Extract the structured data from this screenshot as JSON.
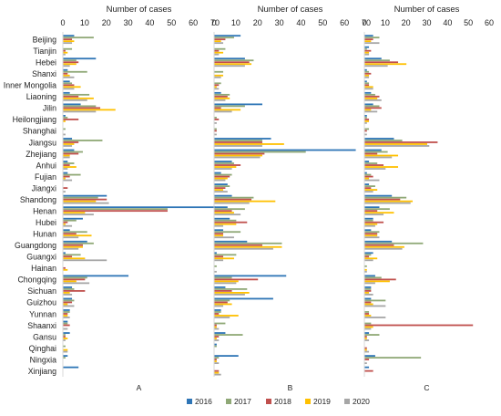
{
  "chart_data": {
    "type": "bar",
    "orientation": "horizontal",
    "xlabel": "Number of cases",
    "categories": [
      "Beijing",
      "Tianjin",
      "Hebei",
      "Shanxi",
      "Inner Mongolia",
      "Liaoning",
      "Jilin",
      "Heilongjiang",
      "Shanghai",
      "Jiangsu",
      "Zhejiang",
      "Anhui",
      "Fujian",
      "Jiangxi",
      "Shandong",
      "Henan",
      "Hubei",
      "Hunan",
      "Guangdong",
      "Guangxi",
      "Hainan",
      "Chongqing",
      "Sichuan",
      "Guizhou",
      "Yunnan",
      "Shaanxi",
      "Gansu",
      "Qinghai",
      "Ningxia",
      "Xinjiang"
    ],
    "legend": {
      "position": "bottom",
      "items": [
        {
          "name": "2016",
          "color": "#2E75B6"
        },
        {
          "name": "2017",
          "color": "#8FA876"
        },
        {
          "name": "2018",
          "color": "#C0504D"
        },
        {
          "name": "2019",
          "color": "#FFC000"
        },
        {
          "name": "2020",
          "color": "#A6A6A6"
        }
      ]
    },
    "panels": [
      {
        "label": "A",
        "xticks": [
          0,
          10,
          20,
          30,
          40,
          50,
          60,
          70
        ],
        "xlim": [
          0,
          70
        ],
        "series": [
          {
            "name": "2016",
            "values": [
              5,
              0,
              15,
              2,
              3,
              3,
              8,
              1,
              0,
              4,
              5,
              2,
              2,
              0,
              20,
              70,
              9,
              3,
              11,
              1,
              0,
              30,
              4,
              4,
              3,
              2,
              3,
              0,
              2,
              7
            ]
          },
          {
            "name": "2017",
            "values": [
              14,
              4,
              6,
              11,
              4,
              12,
              15,
              2,
              1,
              18,
              9,
              5,
              8,
              0,
              16,
              48,
              6,
              11,
              14,
              8,
              0,
              11,
              5,
              5,
              3,
              2,
              1,
              1,
              1,
              0
            ]
          },
          {
            "name": "2018",
            "values": [
              4,
              1,
              7,
              2,
              5,
              7,
              17,
              7,
              0,
              7,
              7,
              3,
              3,
              2,
              20,
              48,
              2,
              6,
              9,
              4,
              1,
              10,
              10,
              4,
              2,
              3,
              1,
              0,
              0,
              0
            ]
          },
          {
            "name": "2019",
            "values": [
              5,
              2,
              6,
              3,
              8,
              14,
              24,
              1,
              0,
              5,
              3,
              6,
              1,
              0,
              15,
              10,
              1,
              13,
              9,
              10,
              2,
              6,
              3,
              2,
              2,
              0,
              2,
              2,
              0,
              0
            ]
          },
          {
            "name": "2020",
            "values": [
              4,
              1,
              3,
              5,
              5,
              11,
              15,
              0,
              1,
              4,
              3,
              2,
              4,
              1,
              21,
              14,
              4,
              7,
              7,
              20,
              0,
              12,
              4,
              5,
              3,
              2,
              1,
              2,
              0,
              0
            ]
          }
        ]
      },
      {
        "label": "B",
        "xticks": [
          0,
          10,
          20,
          30,
          40,
          50,
          60,
          70
        ],
        "xlim": [
          0,
          70
        ],
        "series": [
          {
            "name": "2016",
            "values": [
              12,
              0,
              14,
              0,
              0,
              3,
              22,
              0,
              0,
              26,
              65,
              8,
              3,
              6,
              8,
              6,
              7,
              4,
              15,
              1,
              0,
              33,
              5,
              27,
              3,
              0,
              5,
              1,
              11,
              0
            ]
          },
          {
            "name": "2017",
            "values": [
              9,
              5,
              18,
              4,
              3,
              7,
              14,
              1,
              1,
              22,
              42,
              9,
              8,
              7,
              18,
              14,
              10,
              12,
              31,
              10,
              1,
              8,
              15,
              7,
              3,
              5,
              13,
              1,
              2,
              0
            ]
          },
          {
            "name": "2018",
            "values": [
              5,
              2,
              16,
              0,
              2,
              6,
              3,
              2,
              1,
              22,
              23,
              12,
              7,
              5,
              17,
              8,
              15,
              4,
              22,
              4,
              0,
              20,
              8,
              6,
              2,
              1,
              2,
              0,
              1,
              2
            ]
          },
          {
            "name": "2019",
            "values": [
              3,
              4,
              17,
              4,
              1,
              7,
              12,
              0,
              0,
              32,
              22,
              10,
              6,
              4,
              28,
              9,
              10,
              4,
              31,
              9,
              0,
              11,
              16,
              8,
              11,
              1,
              1,
              0,
              1,
              2
            ]
          },
          {
            "name": "2020",
            "values": [
              4,
              2,
              14,
              3,
              2,
              5,
              8,
              1,
              1,
              22,
              21,
              8,
              5,
              6,
              16,
              12,
              4,
              9,
              27,
              4,
              1,
              10,
              14,
              4,
              7,
              2,
              2,
              0,
              2,
              3
            ]
          }
        ]
      },
      {
        "label": "C",
        "xticks": [
          0,
          10,
          20,
          30,
          40,
          50,
          60
        ],
        "xlim": [
          0,
          60
        ],
        "series": [
          {
            "name": "2016",
            "values": [
              4,
              2,
              8,
              1,
              1,
              3,
              4,
              1,
              0,
              14,
              8,
              2,
              1,
              2,
              13,
              7,
              4,
              3,
              13,
              4,
              0,
              5,
              3,
              3,
              0,
              0,
              2,
              0,
              5,
              2
            ]
          },
          {
            "name": "2017",
            "values": [
              7,
              1,
              12,
              2,
              2,
              5,
              7,
              1,
              2,
              18,
              11,
              6,
              3,
              5,
              20,
              12,
              4,
              7,
              28,
              3,
              1,
              8,
              3,
              10,
              2,
              3,
              7,
              0,
              27,
              0
            ]
          },
          {
            "name": "2018",
            "values": [
              4,
              3,
              16,
              3,
              2,
              7,
              8,
              2,
              1,
              35,
              6,
              9,
              4,
              3,
              17,
              6,
              9,
              6,
              14,
              2,
              0,
              15,
              3,
              3,
              2,
              52,
              1,
              1,
              2,
              4
            ]
          },
          {
            "name": "2019",
            "values": [
              3,
              2,
              20,
              2,
              4,
              6,
              3,
              2,
              0,
              30,
              16,
              16,
              2,
              6,
              23,
              14,
              6,
              6,
              19,
              6,
              1,
              12,
              2,
              4,
              3,
              4,
              1,
              1,
              0,
              0
            ]
          },
          {
            "name": "2020",
            "values": [
              7,
              2,
              11,
              2,
              4,
              8,
              6,
              1,
              1,
              31,
              13,
              10,
              7,
              4,
              22,
              9,
              5,
              7,
              18,
              4,
              1,
              5,
              4,
              10,
              10,
              3,
              2,
              2,
              1,
              0
            ]
          }
        ]
      }
    ]
  }
}
